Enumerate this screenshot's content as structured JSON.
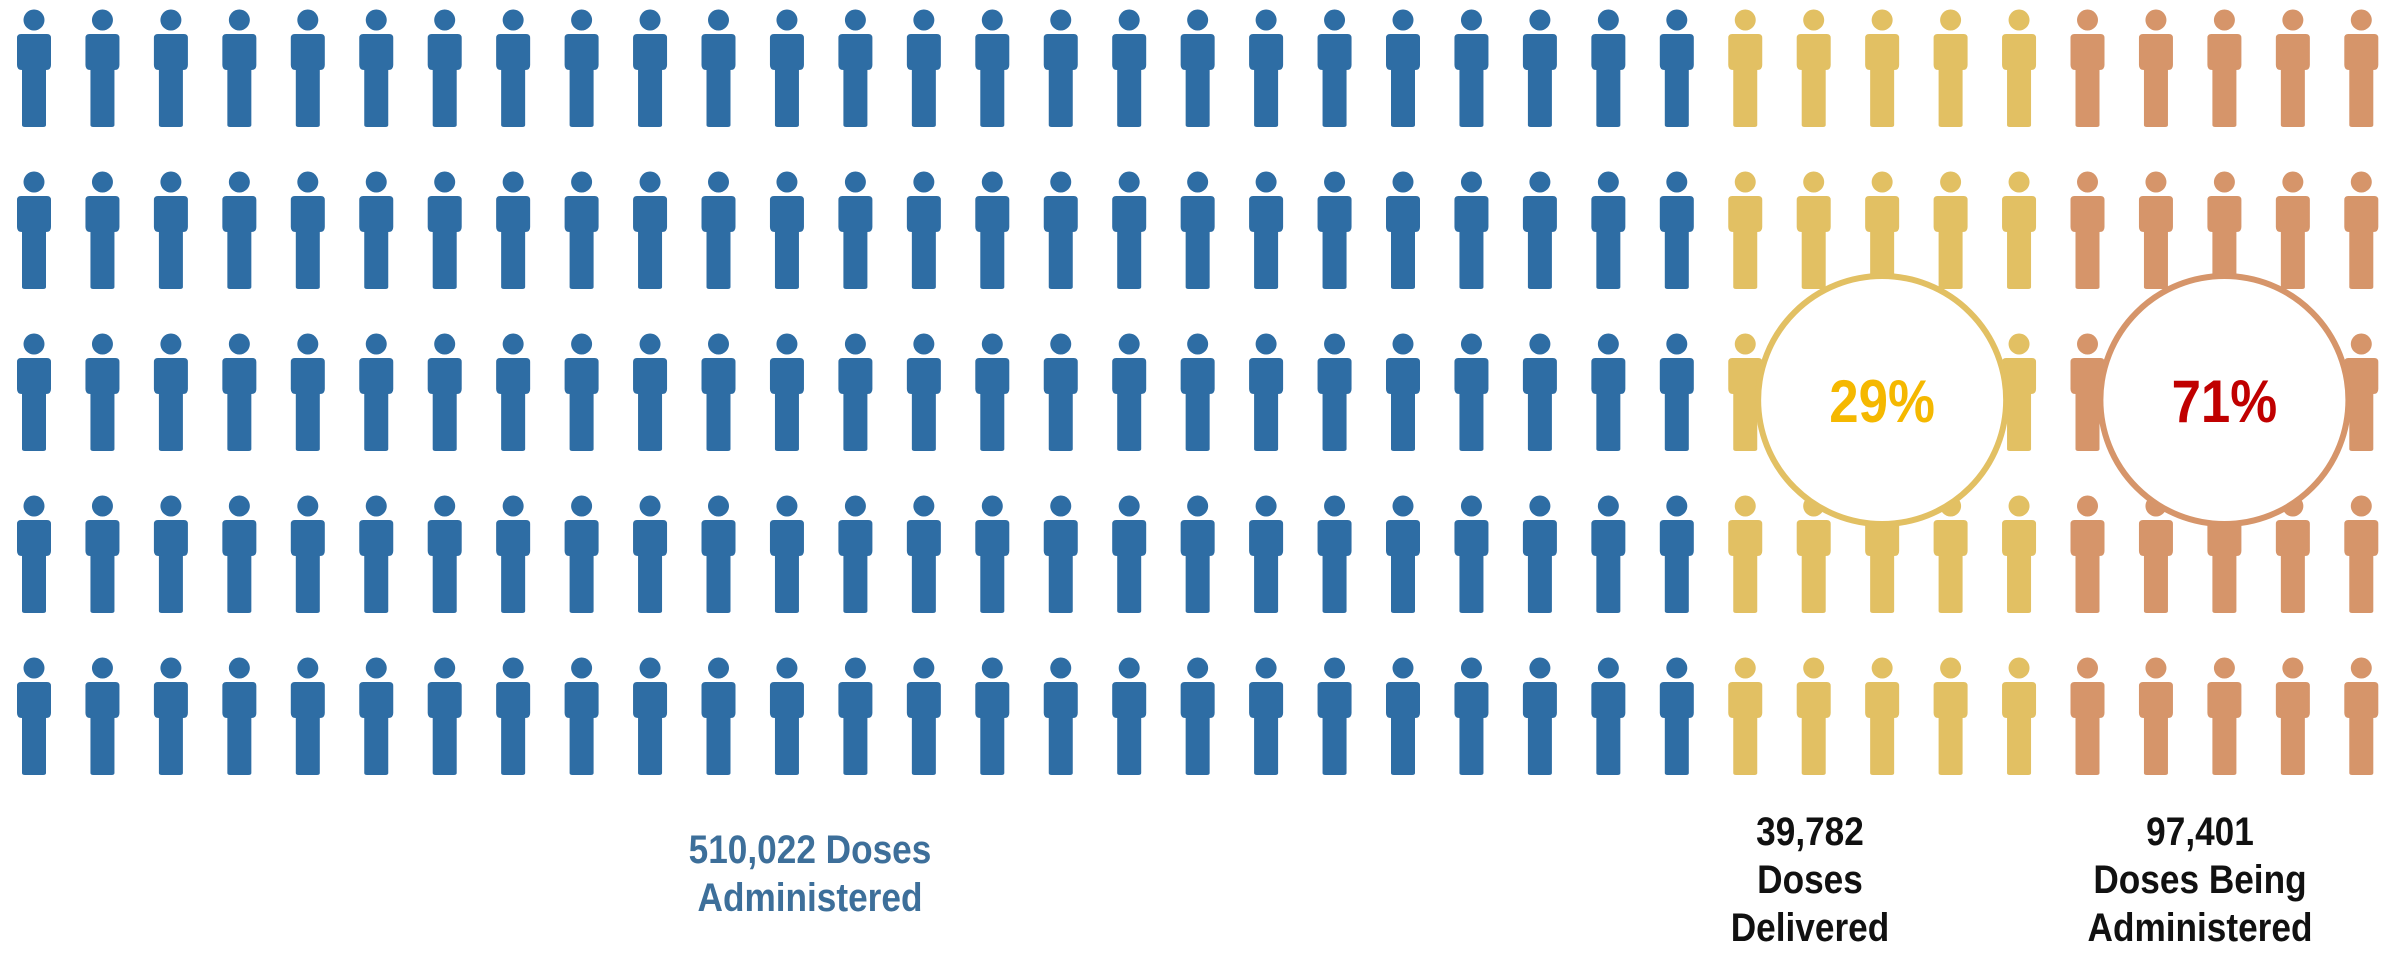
{
  "colors": {
    "administered": "#2e6da4",
    "delivered": "#e2c063",
    "being_administered": "#d6956a",
    "pct_delivered_text": "#f5b800",
    "pct_being_text": "#c00000",
    "administered_label_text": "#3d6f9a",
    "other_label_text": "#111111"
  },
  "chart_data": {
    "type": "pictograph",
    "icon": "person-icon",
    "rows": 5,
    "columns": 35,
    "groups": [
      {
        "key": "administered",
        "label_lines": [
          "510,022 Doses",
          "Administered"
        ],
        "value": 510022,
        "columns": 25,
        "percent_label": ""
      },
      {
        "key": "delivered",
        "label_lines": [
          "39,782",
          "Doses",
          "Delivered"
        ],
        "value": 39782,
        "columns": 5,
        "percent_label": "29%"
      },
      {
        "key": "being_administered",
        "label_lines": [
          "97,401",
          "Doses Being",
          "Administered"
        ],
        "value": 97401,
        "columns": 5,
        "percent_label": "71%"
      }
    ]
  }
}
